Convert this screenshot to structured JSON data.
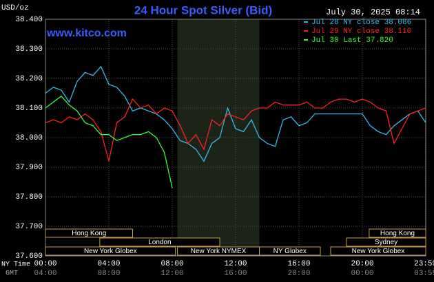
{
  "chart_data": {
    "type": "line",
    "title": "24 Hour Spot Silver (Bid)",
    "timestamp": "July 30, 2025 08:14",
    "site": "www.kitco.com",
    "y_label": "USD/oz",
    "x_label": "NY Time",
    "x2_label": "GMT",
    "grid": true,
    "xlim": [
      0,
      24
    ],
    "ylim": [
      37.6,
      38.4
    ],
    "yticks": [
      {
        "value": 37.6,
        "label": "37.600"
      },
      {
        "value": 37.7,
        "label": "37.700"
      },
      {
        "value": 37.8,
        "label": "37.800"
      },
      {
        "value": 37.9,
        "label": "37.900"
      },
      {
        "value": 38.0,
        "label": "38.000"
      },
      {
        "value": 38.1,
        "label": "38.100"
      },
      {
        "value": 38.2,
        "label": "38.200"
      },
      {
        "value": 38.3,
        "label": "38.300"
      },
      {
        "value": 38.4,
        "label": "38.400"
      }
    ],
    "xticks": [
      {
        "value": 0,
        "label": "00:00"
      },
      {
        "value": 4,
        "label": "04:00"
      },
      {
        "value": 8,
        "label": "08:00"
      },
      {
        "value": 12,
        "label": "12:00"
      },
      {
        "value": 16,
        "label": "16:00"
      },
      {
        "value": 20,
        "label": "20:00"
      },
      {
        "value": 23.983,
        "label": "23:59"
      }
    ],
    "gmt_ticks": [
      {
        "value": 0,
        "label": "04:00"
      },
      {
        "value": 4,
        "label": "08:00"
      },
      {
        "value": 8,
        "label": "12:00"
      },
      {
        "value": 12,
        "label": "16:00"
      },
      {
        "value": 16,
        "label": "20:00"
      },
      {
        "value": 20,
        "label": "00:00"
      },
      {
        "value": 23.983,
        "label": "03:59"
      }
    ],
    "shaded_span": [
      8.33,
      13.5
    ],
    "sessions": [
      [
        {
          "name": "Hong Kong",
          "start": 0,
          "end": 5.5
        },
        {
          "name": "Hong Kong",
          "start": 20.43,
          "end": 24
        }
      ],
      [
        {
          "name": "London",
          "start": 3.43,
          "end": 11
        },
        {
          "name": "Sydney",
          "start": 19,
          "end": 24
        }
      ],
      [
        {
          "name": "New York Globex",
          "start": 0,
          "end": 8.2
        },
        {
          "name": "New York NYMEX",
          "start": 8.33,
          "end": 13.5
        },
        {
          "name": "NY Globex",
          "start": 13.5,
          "end": 17.35
        },
        {
          "name": "New York Globex",
          "start": 18,
          "end": 24
        }
      ]
    ],
    "x": [
      0,
      0.5,
      1,
      1.5,
      2,
      2.5,
      3,
      3.5,
      4,
      4.5,
      5,
      5.5,
      6,
      6.5,
      7,
      7.5,
      8,
      8.5,
      9,
      9.5,
      10,
      10.5,
      11,
      11.5,
      12,
      12.5,
      13,
      13.5,
      14,
      14.5,
      15,
      15.5,
      16,
      16.5,
      17,
      17.5,
      18,
      18.5,
      19,
      19.5,
      20,
      20.5,
      21,
      21.5,
      22,
      22.5,
      23,
      23.5,
      24
    ],
    "series": [
      {
        "name": "Jul 28 NY close 38.086",
        "color": "#33bbee",
        "values": [
          38.15,
          38.17,
          38.16,
          38.12,
          38.19,
          38.22,
          38.21,
          38.24,
          38.18,
          38.17,
          38.14,
          38.09,
          38.1,
          38.09,
          38.08,
          38.06,
          38.03,
          37.99,
          37.98,
          37.96,
          37.92,
          37.98,
          38.0,
          38.1,
          38.03,
          38.02,
          38.06,
          38.0,
          37.98,
          37.97,
          38.06,
          38.07,
          38.04,
          38.05,
          38.08,
          38.08,
          38.08,
          38.08,
          38.08,
          38.08,
          38.08,
          38.04,
          38.02,
          38.01,
          38.04,
          38.06,
          38.08,
          38.09,
          38.05
        ]
      },
      {
        "name": "Jul 29 NY close 38.110",
        "color": "#ff2020",
        "values": [
          38.05,
          38.06,
          38.05,
          38.07,
          38.06,
          38.08,
          38.06,
          38.02,
          37.92,
          38.05,
          38.07,
          38.13,
          38.1,
          38.11,
          38.08,
          38.1,
          38.09,
          38.04,
          37.98,
          38.01,
          37.96,
          38.06,
          38.04,
          38.08,
          38.07,
          38.06,
          38.09,
          38.1,
          38.1,
          38.12,
          38.11,
          38.11,
          38.11,
          38.12,
          38.1,
          38.1,
          38.12,
          38.13,
          38.13,
          38.12,
          38.13,
          38.12,
          38.1,
          38.09,
          37.98,
          38.03,
          38.08,
          38.09,
          38.1
        ]
      },
      {
        "name": "Jul 30 Last 37.820",
        "color": "#33ff33",
        "values": [
          38.1,
          38.12,
          38.14,
          38.11,
          38.09,
          38.05,
          38.04,
          38.01,
          38.01,
          37.99,
          38.0,
          38.01,
          38.01,
          38.02,
          38.0,
          37.95,
          37.83,
          null,
          null,
          null,
          null,
          null,
          null,
          null,
          null,
          null,
          null,
          null,
          null,
          null,
          null,
          null,
          null,
          null,
          null,
          null,
          null,
          null,
          null,
          null,
          null,
          null,
          null,
          null,
          null,
          null,
          null,
          null,
          null
        ]
      }
    ]
  }
}
